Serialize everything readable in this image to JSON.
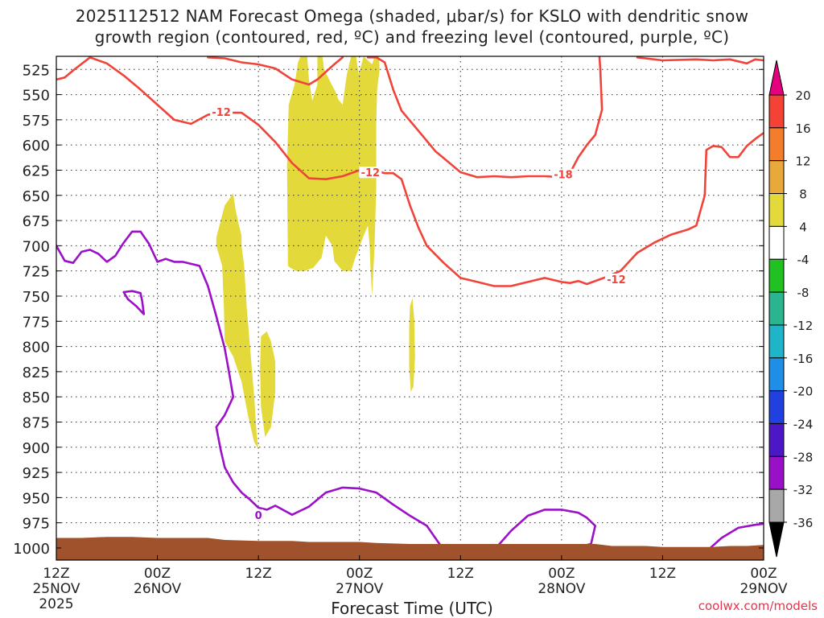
{
  "title_line1": "2025112512 NAM Forecast Omega (shaded, μbar/s) for KSLO with dendritic snow",
  "title_line2": "growth region (contoured, red, ºC) and freezing level (contoured, purple, ºC)",
  "xlabel": "Forecast Time (UTC)",
  "credit": "coolwx.com/models",
  "chart_data": {
    "type": "heatmap",
    "ylim": [
      1012,
      512
    ],
    "xlim": [
      0,
      84
    ],
    "y_ticks": [
      "525",
      "550",
      "575",
      "600",
      "625",
      "650",
      "675",
      "700",
      "725",
      "750",
      "775",
      "800",
      "825",
      "850",
      "875",
      "900",
      "925",
      "950",
      "975",
      "1000"
    ],
    "x_ticks": [
      {
        "hour": 0,
        "line1": "12Z",
        "line2": "25NOV",
        "line3": "2025"
      },
      {
        "hour": 12,
        "line1": "00Z",
        "line2": "26NOV",
        "line3": ""
      },
      {
        "hour": 24,
        "line1": "12Z",
        "line2": "",
        "line3": ""
      },
      {
        "hour": 36,
        "line1": "00Z",
        "line2": "27NOV",
        "line3": ""
      },
      {
        "hour": 48,
        "line1": "12Z",
        "line2": "",
        "line3": ""
      },
      {
        "hour": 60,
        "line1": "00Z",
        "line2": "28NOV",
        "line3": ""
      },
      {
        "hour": 72,
        "line1": "12Z",
        "line2": "",
        "line3": ""
      },
      {
        "hour": 84,
        "line1": "00Z",
        "line2": "29NOV",
        "line3": ""
      }
    ],
    "grid": true,
    "colorbar": {
      "labels": [
        "20",
        "16",
        "12",
        "8",
        "4",
        "-4",
        "-8",
        "-12",
        "-16",
        "-20",
        "-24",
        "-28",
        "-32",
        "-36"
      ],
      "colors": [
        "#e5007d",
        "#f44336",
        "#f47d2c",
        "#e8a93a",
        "#e4d93a",
        "#ffffff",
        "#22c122",
        "#2bb58e",
        "#1fb5c8",
        "#1e8ee6",
        "#2040e0",
        "#4b17c7",
        "#9a0fc8",
        "#a8a8a8",
        "#000000"
      ]
    },
    "colors": {
      "dgz": "#f0433a",
      "freezing": "#9b10c8",
      "omega_up": "#e4d93a",
      "terrain": "#a0522d"
    },
    "contour_labels": [
      {
        "text": "-12",
        "hour": 19.6,
        "p": 568,
        "color": "#f0433a"
      },
      {
        "text": "-12",
        "hour": 37.3,
        "p": 628,
        "color": "#f0433a"
      },
      {
        "text": "-18",
        "hour": 60.2,
        "p": 630,
        "color": "#f0433a"
      },
      {
        "text": "-12",
        "hour": 66.5,
        "p": 734,
        "color": "#f0433a"
      },
      {
        "text": "0",
        "hour": 24.0,
        "p": 968,
        "color": "#9b10c8"
      }
    ],
    "series": [
      {
        "role": "dgz_upper_-12",
        "color": "#f0433a",
        "points": [
          [
            0,
            535
          ],
          [
            1,
            533
          ],
          [
            2,
            526
          ],
          [
            4,
            513
          ],
          [
            6,
            519
          ],
          [
            8,
            531
          ],
          [
            10,
            545
          ],
          [
            12,
            560
          ],
          [
            14,
            575
          ],
          [
            16,
            579
          ],
          [
            18,
            570
          ],
          [
            20,
            568
          ],
          [
            22,
            568
          ],
          [
            24,
            580
          ],
          [
            26,
            597
          ],
          [
            28,
            618
          ],
          [
            30,
            633
          ],
          [
            32,
            634
          ],
          [
            34,
            631
          ],
          [
            36,
            625
          ],
          [
            37,
            623
          ],
          [
            38,
            626
          ],
          [
            39,
            628
          ],
          [
            40,
            628
          ],
          [
            41,
            634
          ],
          [
            42,
            660
          ],
          [
            43,
            682
          ],
          [
            44,
            700
          ],
          [
            46,
            717
          ],
          [
            48,
            732
          ],
          [
            50,
            736
          ],
          [
            52,
            740
          ],
          [
            54,
            740
          ],
          [
            56,
            736
          ],
          [
            58,
            732
          ],
          [
            60,
            736
          ],
          [
            61,
            737
          ],
          [
            62,
            735
          ],
          [
            63,
            738
          ],
          [
            65,
            732
          ],
          [
            67,
            725
          ],
          [
            69,
            707
          ],
          [
            71,
            697
          ],
          [
            73,
            689
          ],
          [
            75,
            684
          ],
          [
            76,
            680
          ],
          [
            77,
            650
          ],
          [
            77.2,
            605
          ],
          [
            78,
            601
          ],
          [
            79,
            602
          ],
          [
            80,
            612
          ],
          [
            81,
            612
          ],
          [
            82,
            601
          ],
          [
            83,
            594
          ],
          [
            84,
            588
          ]
        ]
      },
      {
        "role": "dgz_top",
        "color": "#f0433a",
        "points": [
          [
            18,
            513
          ],
          [
            20,
            514
          ],
          [
            22,
            518
          ],
          [
            24,
            520
          ],
          [
            26,
            524
          ],
          [
            28,
            535
          ],
          [
            30,
            540
          ],
          [
            31,
            535
          ],
          [
            33,
            520
          ],
          [
            34,
            513
          ]
        ]
      },
      {
        "role": "dgz_-18",
        "color": "#f0433a",
        "points": [
          [
            37,
            513
          ],
          [
            38,
            513
          ],
          [
            39,
            518
          ],
          [
            40,
            545
          ],
          [
            41,
            566
          ],
          [
            43,
            586
          ],
          [
            45,
            606
          ],
          [
            48,
            627
          ],
          [
            50,
            632
          ],
          [
            52,
            631
          ],
          [
            54,
            632
          ],
          [
            56,
            631
          ],
          [
            58,
            631
          ],
          [
            60,
            632
          ],
          [
            61,
            628
          ],
          [
            62,
            612
          ],
          [
            63,
            600
          ],
          [
            64,
            590
          ],
          [
            64.8,
            565
          ],
          [
            64.6,
            525
          ],
          [
            64.5,
            512
          ]
        ]
      },
      {
        "role": "dgz_top_right",
        "color": "#f0433a",
        "points": [
          [
            69,
            513
          ],
          [
            72,
            516
          ],
          [
            76,
            515
          ],
          [
            78,
            516
          ],
          [
            80,
            515
          ],
          [
            82,
            519
          ],
          [
            83,
            515
          ],
          [
            84,
            516
          ]
        ]
      },
      {
        "role": "freezing_main",
        "color": "#9b10c8",
        "points": [
          [
            0,
            700
          ],
          [
            1,
            715
          ],
          [
            2,
            717
          ],
          [
            3,
            706
          ],
          [
            4,
            704
          ],
          [
            5,
            708
          ],
          [
            6,
            716
          ],
          [
            7,
            710
          ],
          [
            8,
            697
          ],
          [
            9,
            686
          ],
          [
            10,
            686
          ],
          [
            11,
            698
          ],
          [
            12,
            716
          ],
          [
            13,
            713
          ],
          [
            14,
            716
          ],
          [
            15,
            716
          ],
          [
            17,
            720
          ],
          [
            18,
            740
          ],
          [
            19,
            770
          ],
          [
            20,
            802
          ],
          [
            20.5,
            825
          ],
          [
            21,
            850
          ],
          [
            20,
            868
          ],
          [
            19,
            880
          ],
          [
            19.5,
            902
          ],
          [
            20,
            920
          ],
          [
            21,
            935
          ],
          [
            22,
            945
          ],
          [
            23,
            952
          ],
          [
            24,
            960
          ],
          [
            25,
            962
          ],
          [
            26,
            958
          ],
          [
            28,
            967
          ],
          [
            30,
            959
          ],
          [
            32,
            945
          ],
          [
            34,
            940
          ],
          [
            36,
            941
          ],
          [
            38,
            945
          ],
          [
            40,
            957
          ],
          [
            42,
            968
          ],
          [
            44,
            978
          ],
          [
            46,
            1002
          ]
        ]
      },
      {
        "role": "freezing_small",
        "color": "#9b10c8",
        "points": [
          [
            8,
            746
          ],
          [
            9,
            745
          ],
          [
            10,
            747
          ],
          [
            10.2,
            755
          ],
          [
            10.4,
            768
          ],
          [
            9.5,
            760
          ],
          [
            8.5,
            753
          ],
          [
            8,
            746
          ]
        ]
      },
      {
        "role": "freezing_28nov",
        "color": "#9b10c8",
        "points": [
          [
            52,
            1002
          ],
          [
            54,
            983
          ],
          [
            56,
            968
          ],
          [
            58,
            962
          ],
          [
            60,
            962
          ],
          [
            62,
            965
          ],
          [
            63,
            970
          ],
          [
            64,
            978
          ],
          [
            63.5,
            996
          ],
          [
            61,
            1001
          ]
        ]
      },
      {
        "role": "freezing_29nov",
        "color": "#9b10c8",
        "points": [
          [
            77,
            1005
          ],
          [
            79,
            990
          ],
          [
            81,
            980
          ],
          [
            83,
            977
          ],
          [
            84,
            976
          ]
        ]
      }
    ],
    "omega_regions": [
      {
        "value": ">4",
        "points": [
          [
            19,
            692
          ],
          [
            20,
            660
          ],
          [
            21,
            648
          ],
          [
            21.3,
            665
          ],
          [
            21.7,
            680
          ],
          [
            22,
            690
          ],
          [
            22,
            700
          ],
          [
            22.3,
            720
          ],
          [
            22.6,
            760
          ],
          [
            23,
            800
          ],
          [
            23.5,
            850
          ],
          [
            23.8,
            888
          ],
          [
            24,
            902
          ],
          [
            23.5,
            895
          ],
          [
            22.8,
            870
          ],
          [
            22,
            835
          ],
          [
            21,
            810
          ],
          [
            20,
            795
          ],
          [
            19.9,
            760
          ],
          [
            19.7,
            720
          ],
          [
            19,
            700
          ]
        ]
      },
      {
        "value": ">4",
        "points": [
          [
            24.3,
            790
          ],
          [
            25,
            785
          ],
          [
            25.5,
            795
          ],
          [
            26,
            815
          ],
          [
            26,
            845
          ],
          [
            25.5,
            880
          ],
          [
            24.8,
            890
          ],
          [
            24.3,
            860
          ],
          [
            24.2,
            820
          ]
        ]
      },
      {
        "value": ">4",
        "points": [
          [
            27.5,
            720
          ],
          [
            27.4,
            620
          ],
          [
            27.6,
            560
          ],
          [
            28.3,
            540
          ],
          [
            28.7,
            518
          ],
          [
            29,
            512
          ],
          [
            29.8,
            512
          ],
          [
            30,
            535
          ],
          [
            30.4,
            556
          ],
          [
            31,
            540
          ],
          [
            31,
            512
          ],
          [
            31.6,
            512
          ],
          [
            31.8,
            525
          ],
          [
            32.4,
            535
          ],
          [
            33.2,
            548
          ],
          [
            33.5,
            555
          ],
          [
            34,
            560
          ],
          [
            34.5,
            530
          ],
          [
            35,
            512
          ],
          [
            35.6,
            512
          ],
          [
            35.9,
            530
          ],
          [
            36.5,
            512
          ],
          [
            37.5,
            520
          ],
          [
            37.8,
            512
          ],
          [
            38.3,
            512
          ],
          [
            38.4,
            525
          ],
          [
            38.1,
            545
          ],
          [
            38,
            580
          ],
          [
            38,
            640
          ],
          [
            37.8,
            700
          ],
          [
            37.5,
            750
          ],
          [
            37.3,
            720
          ],
          [
            37.2,
            700
          ],
          [
            37,
            680
          ],
          [
            36.5,
            690
          ],
          [
            35.5,
            712
          ],
          [
            35,
            725
          ],
          [
            34,
            725
          ],
          [
            33,
            715
          ],
          [
            32.8,
            700
          ],
          [
            32,
            690
          ],
          [
            31.5,
            712
          ],
          [
            30.5,
            722
          ],
          [
            29.5,
            725
          ],
          [
            28.5,
            725
          ],
          [
            27.8,
            722
          ]
        ]
      },
      {
        "value": ">4",
        "points": [
          [
            42,
            760
          ],
          [
            42.3,
            752
          ],
          [
            42.5,
            772
          ],
          [
            42.6,
            810
          ],
          [
            42.4,
            840
          ],
          [
            42.1,
            845
          ],
          [
            41.9,
            820
          ],
          [
            41.9,
            780
          ]
        ]
      }
    ],
    "terrain": [
      [
        0,
        990
      ],
      [
        3,
        990
      ],
      [
        6,
        989
      ],
      [
        9,
        989
      ],
      [
        12,
        990
      ],
      [
        18,
        990
      ],
      [
        20,
        992
      ],
      [
        24,
        993
      ],
      [
        28,
        993
      ],
      [
        30,
        994
      ],
      [
        34,
        994
      ],
      [
        36,
        994
      ],
      [
        38,
        995
      ],
      [
        42,
        996
      ],
      [
        48,
        996
      ],
      [
        54,
        996
      ],
      [
        60,
        996
      ],
      [
        64,
        996
      ],
      [
        66,
        998
      ],
      [
        70,
        998
      ],
      [
        72,
        999
      ],
      [
        74,
        999
      ],
      [
        76,
        999
      ],
      [
        78,
        999
      ],
      [
        80,
        998
      ],
      [
        82,
        998
      ],
      [
        84,
        997
      ]
    ]
  }
}
